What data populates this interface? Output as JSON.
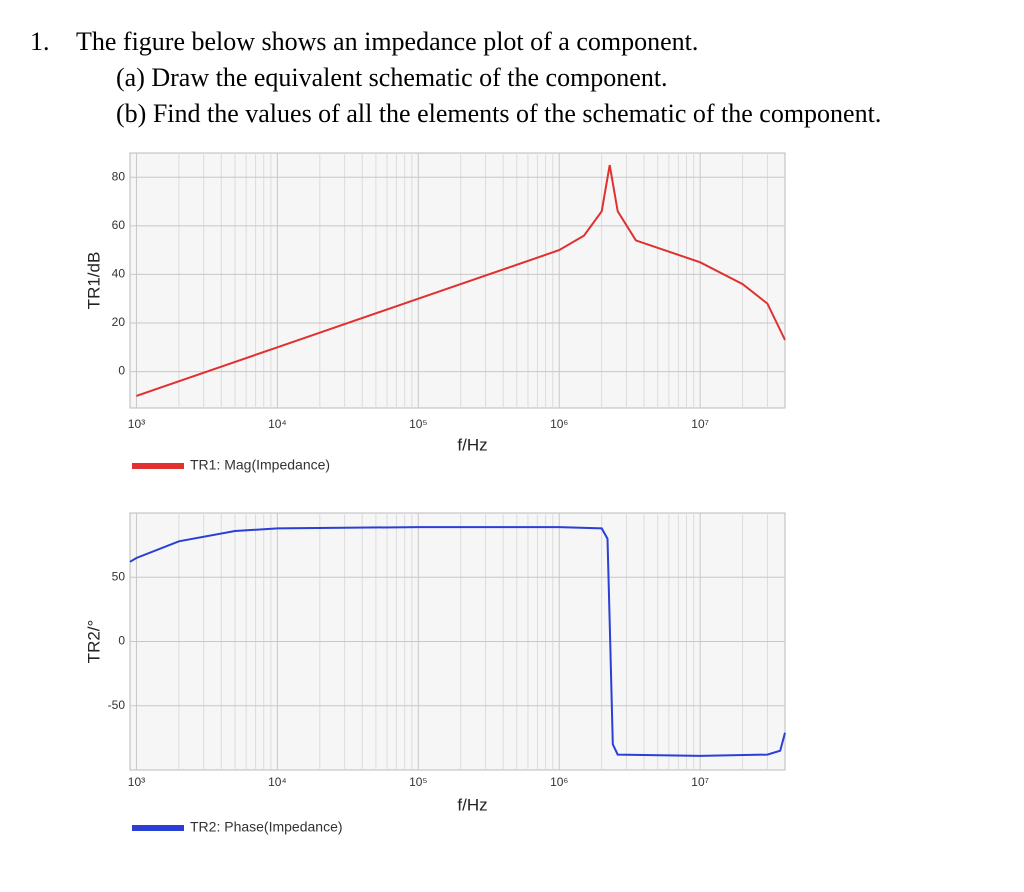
{
  "question": {
    "number": "1.",
    "text": "The figure below shows an impedance plot of a component.",
    "parts": [
      "(a) Draw the equivalent schematic of the component.",
      "(b) Find the values of all the elements of the schematic of the component."
    ]
  },
  "chart_data": [
    {
      "type": "line",
      "x_label": "f/Hz",
      "y_label": "TR1/dB",
      "log_x": true,
      "grid": true,
      "x": [
        1000,
        10000,
        100000,
        1000000,
        1500000,
        2000000,
        2280000,
        2600000,
        3500000,
        10000000,
        20000000,
        30000000,
        40000000
      ],
      "series": [
        {
          "name": "TR1: Mag(Impedance)",
          "color": "#e03030",
          "values": [
            -10,
            10,
            30,
            50,
            56,
            66,
            85,
            66,
            54,
            45,
            36,
            28,
            13
          ]
        }
      ],
      "xlim": [
        900,
        40000000
      ],
      "xticks": [
        {
          "value": 1000,
          "label": "10³"
        },
        {
          "value": 10000,
          "label": "10⁴"
        },
        {
          "value": 100000,
          "label": "10⁵"
        },
        {
          "value": 1000000,
          "label": "10⁶"
        },
        {
          "value": 10000000,
          "label": "10⁷"
        }
      ],
      "ylim": [
        -15,
        90
      ],
      "yticks": [
        0,
        20,
        40,
        60,
        80
      ]
    },
    {
      "type": "line",
      "x_label": "f/Hz",
      "y_label": "TR2/°",
      "log_x": true,
      "grid": true,
      "x": [
        900,
        1000,
        2000,
        5000,
        10000,
        100000,
        1000000,
        2000000,
        2200000,
        2300000,
        2400000,
        2600000,
        10000000,
        30000000,
        37000000,
        40000000
      ],
      "series": [
        {
          "name": "TR2: Phase(Impedance)",
          "color": "#2a3fd6",
          "values": [
            62,
            65,
            78,
            86,
            88,
            89,
            89,
            88,
            80,
            0,
            -80,
            -88,
            -89,
            -88,
            -85,
            -71
          ]
        }
      ],
      "xlim": [
        900,
        40000000
      ],
      "xticks": [
        {
          "value": 1000,
          "label": "10³"
        },
        {
          "value": 10000,
          "label": "10⁴"
        },
        {
          "value": 100000,
          "label": "10⁵"
        },
        {
          "value": 1000000,
          "label": "10⁶"
        },
        {
          "value": 10000000,
          "label": "10⁷"
        }
      ],
      "ylim": [
        -100,
        100
      ],
      "yticks": [
        -50,
        0,
        50
      ]
    }
  ]
}
